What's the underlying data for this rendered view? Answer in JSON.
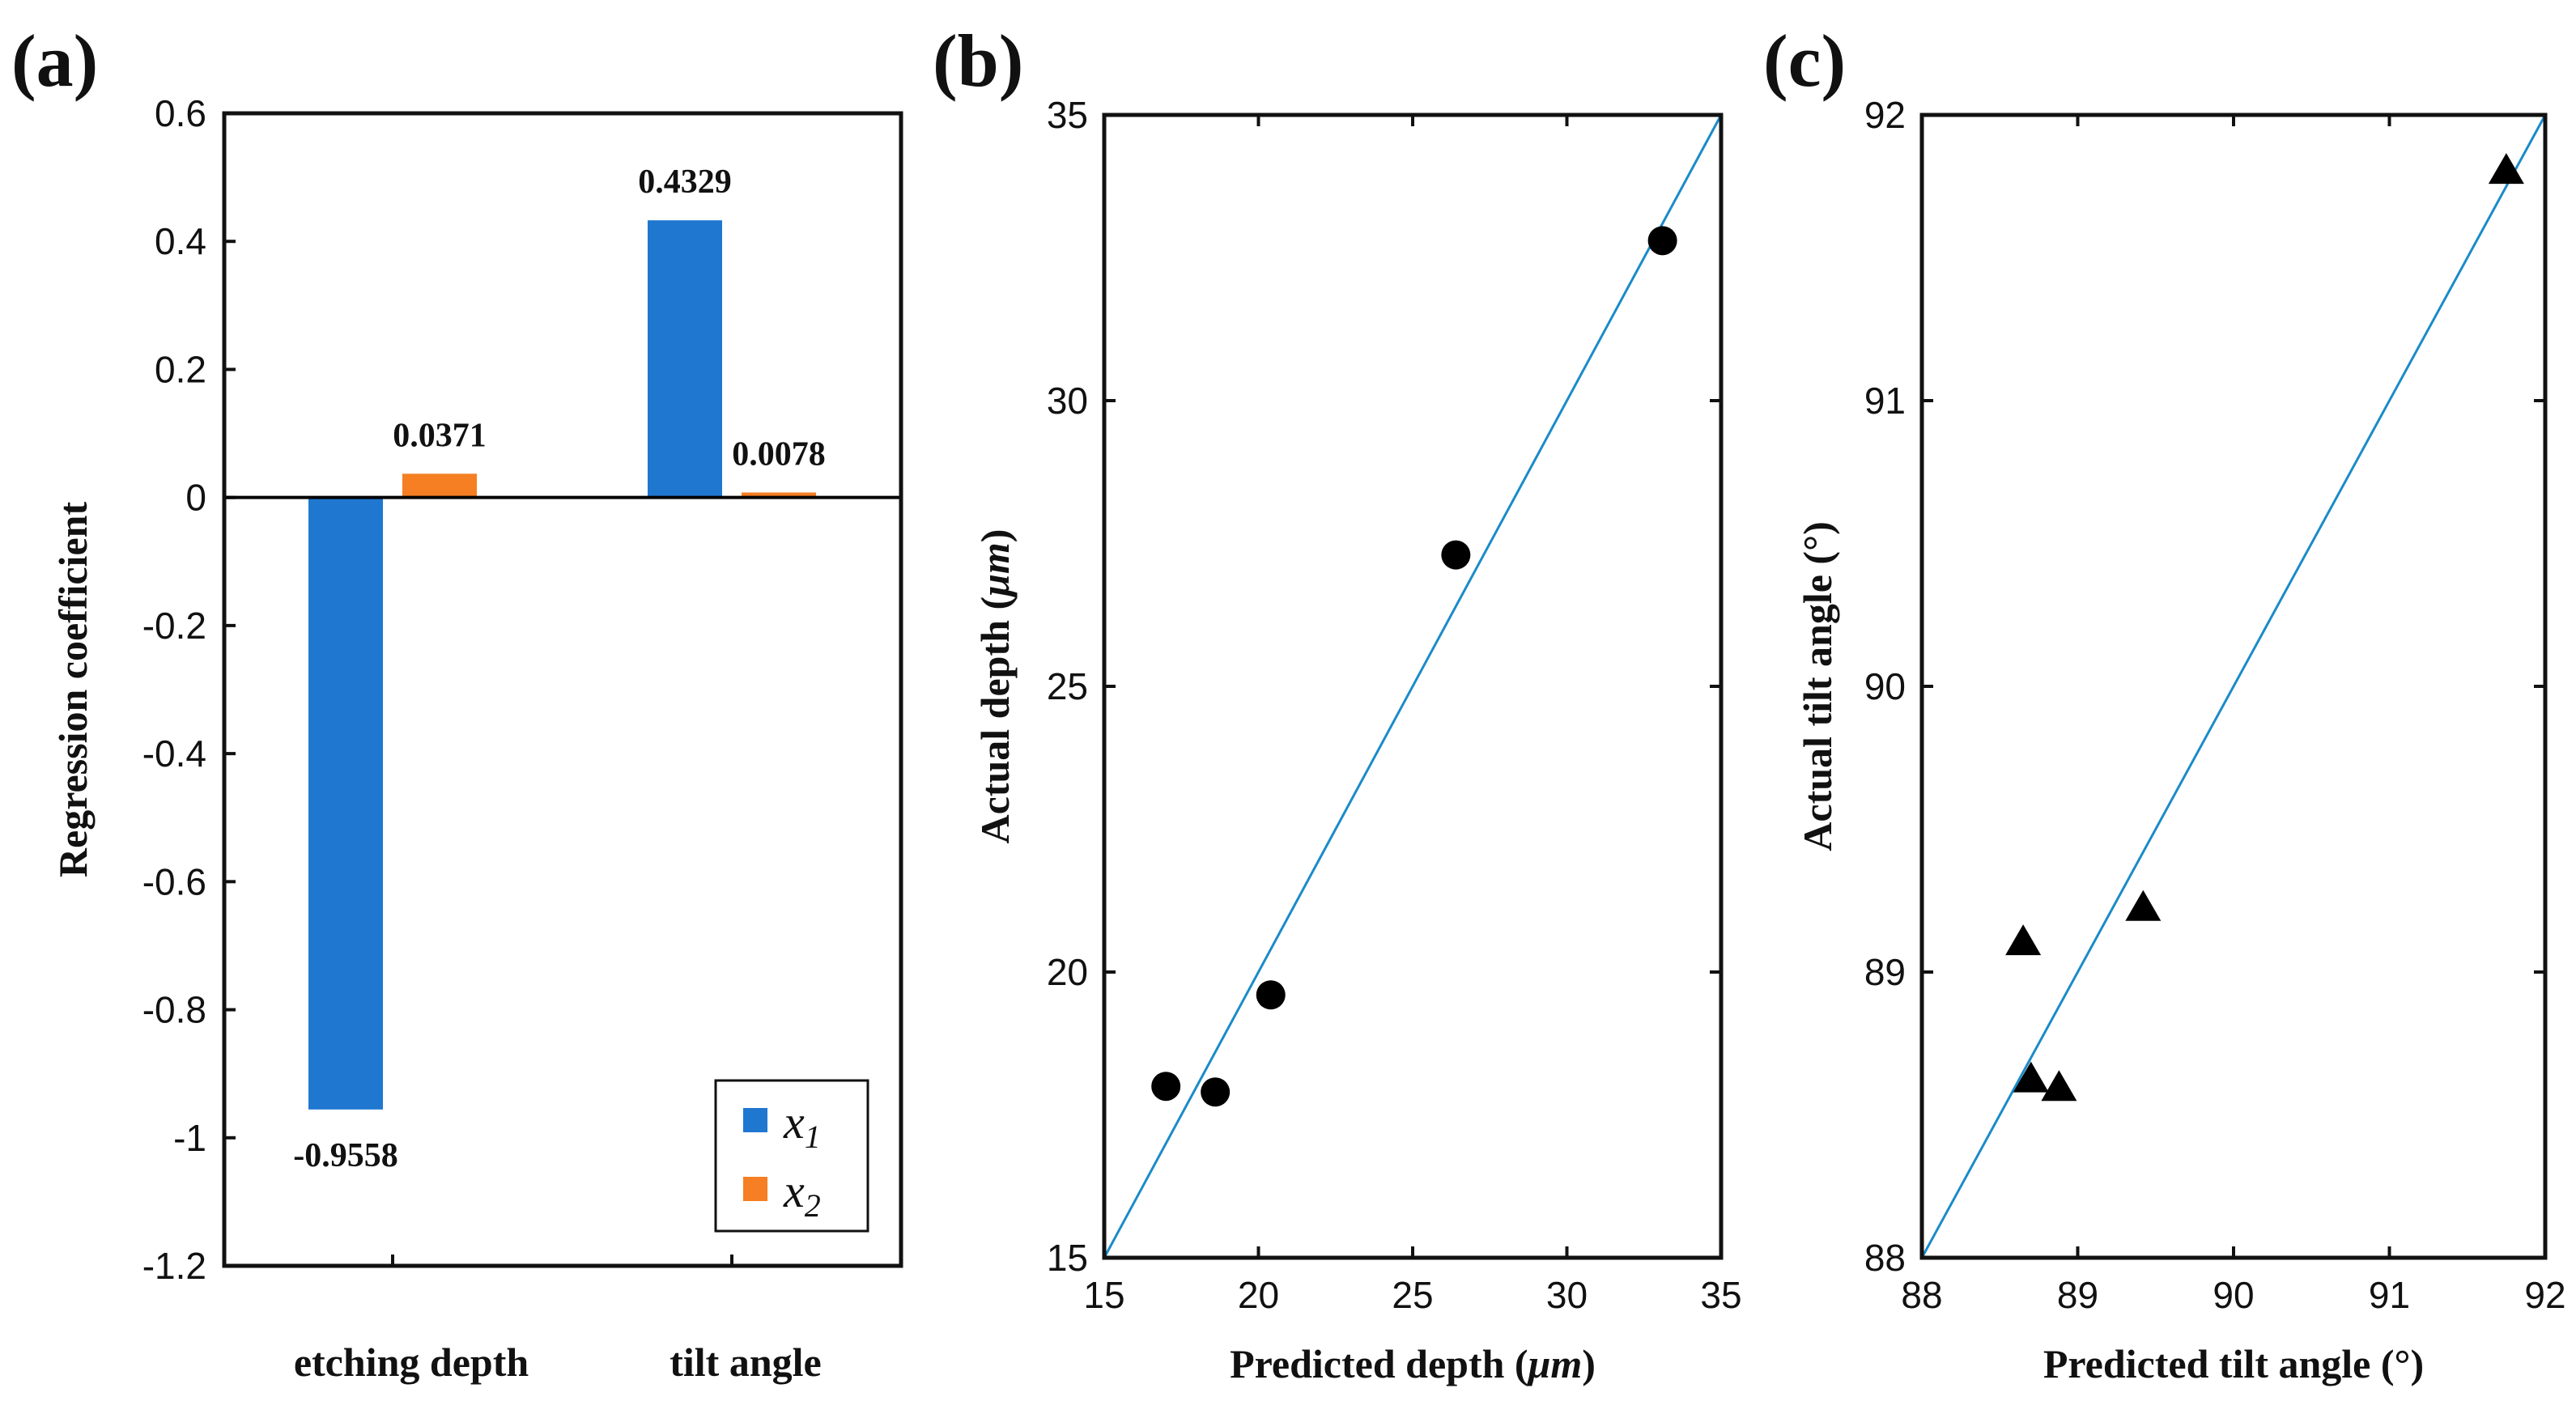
{
  "chart_data": [
    {
      "panel_label": "(a)",
      "type": "bar",
      "categories": [
        "etching depth",
        "tilt angle"
      ],
      "series": [
        {
          "name": "x",
          "subscript": "1",
          "color": "#1f77d0",
          "values": [
            -0.9558,
            0.4329
          ],
          "labels": [
            "-0.9558",
            "0.4329"
          ]
        },
        {
          "name": "x",
          "subscript": "2",
          "color": "#f57f22",
          "values": [
            0.0371,
            0.0078
          ],
          "labels": [
            "0.0371",
            "0.0078"
          ]
        }
      ],
      "ylabel": "Regression coefficient",
      "xlabel": "",
      "ylim": [
        -1.2,
        0.6
      ],
      "yticks": [
        0.6,
        0.4,
        0.2,
        0,
        -0.2,
        -0.4,
        -0.6,
        -0.8,
        -1,
        -1.2
      ],
      "ytick_labels": [
        "0.6",
        "0.4",
        "0.2",
        "0",
        "-0.2",
        "-0.4",
        "-0.6",
        "-0.8",
        "-1",
        "-1.2"
      ],
      "legend_position": "bottom-right"
    },
    {
      "panel_label": "(b)",
      "type": "scatter",
      "marker": "circle",
      "x": [
        17.0,
        18.6,
        20.4,
        26.4,
        33.1
      ],
      "y": [
        18.0,
        17.9,
        19.6,
        27.3,
        32.8
      ],
      "reference_line": {
        "from": [
          15,
          15
        ],
        "to": [
          35,
          35
        ],
        "color": "#1a8bc8"
      },
      "xlabel_prefix": "Predicted depth (",
      "xlabel_unit": "μm",
      "xlabel_suffix": ")",
      "ylabel_prefix": "Actual depth (",
      "ylabel_unit": "μm",
      "ylabel_suffix": ")",
      "xlim": [
        15,
        35
      ],
      "ylim": [
        15,
        35
      ],
      "xticks": [
        "15",
        "20",
        "25",
        "30",
        "35"
      ],
      "yticks": [
        "15",
        "20",
        "25",
        "30",
        "35"
      ]
    },
    {
      "panel_label": "(c)",
      "type": "scatter",
      "marker": "triangle",
      "x": [
        88.65,
        88.7,
        88.88,
        89.42,
        91.75
      ],
      "y": [
        89.11,
        88.63,
        88.6,
        89.23,
        91.81
      ],
      "reference_line": {
        "from": [
          88,
          88
        ],
        "to": [
          92,
          92
        ],
        "color": "#1a8bc8"
      },
      "xlabel": "Predicted tilt angle (°)",
      "ylabel": "Actual tilt angle (°)",
      "xlim": [
        88,
        92
      ],
      "ylim": [
        88,
        92
      ],
      "xticks": [
        "88",
        "89",
        "90",
        "91",
        "92"
      ],
      "yticks": [
        "88",
        "89",
        "90",
        "91",
        "92"
      ]
    }
  ]
}
